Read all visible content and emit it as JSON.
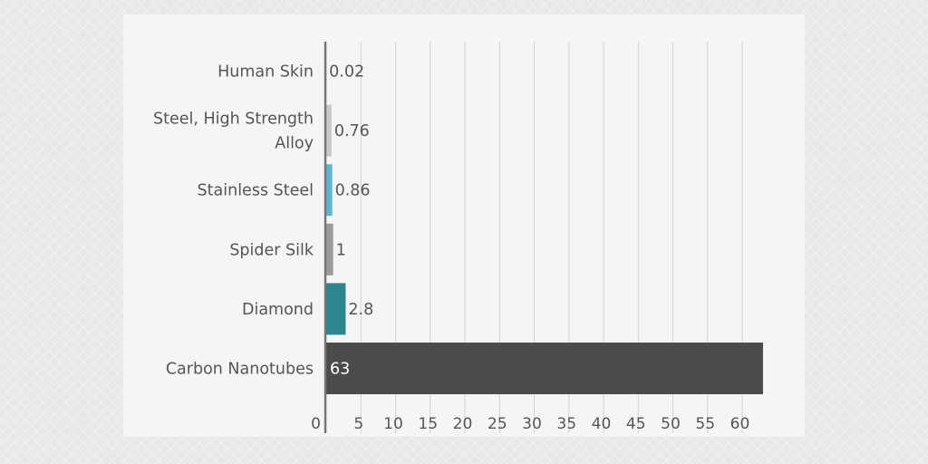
{
  "chart_data": {
    "type": "bar",
    "orientation": "horizontal",
    "title": "",
    "xlabel": "",
    "ylabel": "",
    "categories": [
      [
        "Human Skin"
      ],
      [
        "Steel, High Strength",
        "Alloy"
      ],
      [
        "Stainless Steel"
      ],
      [
        "Spider Silk"
      ],
      [
        "Diamond"
      ],
      [
        "Carbon Nanotubes"
      ]
    ],
    "values": [
      0.02,
      0.76,
      0.86,
      1,
      2.8,
      63
    ],
    "value_labels": [
      "0.02",
      "0.76",
      "0.86",
      "1",
      "2.8",
      "63"
    ],
    "colors": [
      "#b9b9b9",
      "#c9c9c9",
      "#5bb7cc",
      "#9a9a9a",
      "#2b8690",
      "#4b4b4b"
    ],
    "label_colors": [
      "#555555",
      "#555555",
      "#555555",
      "#555555",
      "#555555",
      "#ffffff"
    ],
    "xlim": [
      0,
      63
    ],
    "xticks": [
      0,
      5,
      10,
      15,
      20,
      25,
      30,
      35,
      40,
      45,
      50,
      55,
      60
    ],
    "grid": true,
    "legend": "none"
  }
}
